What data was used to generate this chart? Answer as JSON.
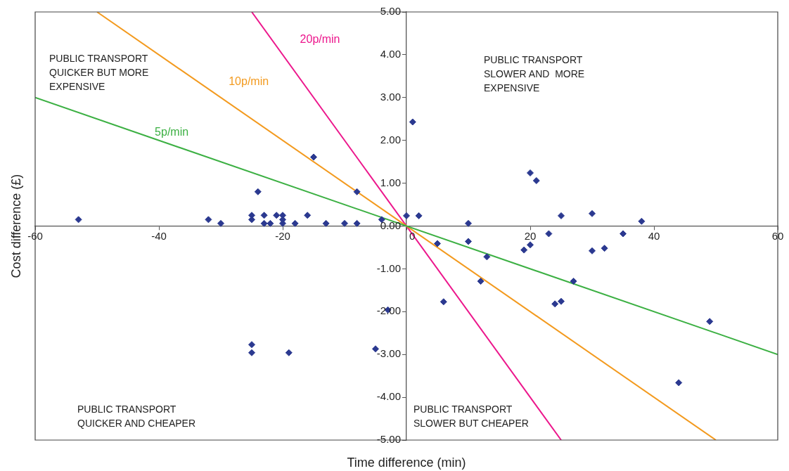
{
  "chart_data": {
    "type": "scatter",
    "xlabel": "Time difference (min)",
    "ylabel": "Cost difference (£)",
    "xlim": [
      -60,
      60
    ],
    "xticks": [
      -60,
      -40,
      -20,
      0,
      20,
      40,
      60
    ],
    "ylim": [
      -5,
      5
    ],
    "yticks": [
      {
        "value": -5,
        "label": "-5.00"
      },
      {
        "value": -4,
        "label": "-4.00"
      },
      {
        "value": -3,
        "label": "-3.00"
      },
      {
        "value": -2,
        "label": "-2.00"
      },
      {
        "value": -1,
        "label": "-1.00"
      },
      {
        "value": 0,
        "label": "0.00"
      },
      {
        "value": 1,
        "label": "1.00"
      },
      {
        "value": 2,
        "label": "2.00"
      },
      {
        "value": 3,
        "label": "3.00"
      },
      {
        "value": 4,
        "label": "4.00"
      },
      {
        "value": 5,
        "label": "5.00"
      }
    ],
    "legend": false,
    "marker": "diamond",
    "annotations": [
      "PUBLIC TRANSPORT\nQUICKER BUT MORE\nEXPENSIVE",
      "PUBLIC TRANSPORT\nSLOWER AND  MORE\nEXPENSIVE",
      "PUBLIC TRANSPORT\nQUICKER AND CHEAPER",
      "PUBLIC TRANSPORT\nSLOWER BUT CHEAPER"
    ],
    "series": [
      {
        "color": "#2b3990",
        "x": [
          -53,
          -32,
          -30,
          -25,
          -25,
          -24,
          -23,
          -23,
          -22,
          -21,
          -20,
          -20,
          -20,
          -18,
          -16,
          -15,
          -13,
          -10,
          -8,
          -8,
          -4,
          -25,
          -25,
          -19,
          -5,
          -3,
          0,
          1,
          2,
          5,
          6,
          10,
          10,
          13,
          12,
          19,
          20,
          20,
          21,
          23,
          24,
          25,
          25,
          27,
          30,
          30,
          32,
          35,
          38,
          44,
          49
        ],
        "values": [
          0.15,
          0.15,
          0.06,
          0.25,
          0.15,
          0.8,
          0.25,
          0.06,
          0.06,
          0.25,
          0.25,
          0.15,
          0.06,
          0.06,
          0.25,
          1.61,
          0.06,
          0.06,
          0.8,
          0.06,
          0.15,
          -2.77,
          -2.96,
          -2.96,
          -2.87,
          -1.96,
          0.24,
          2.43,
          0.24,
          -0.41,
          -1.77,
          0.06,
          -0.36,
          -0.72,
          -1.29,
          -0.56,
          -0.44,
          1.24,
          1.06,
          -0.18,
          -1.82,
          -1.76,
          0.24,
          -1.29,
          0.29,
          -0.58,
          -0.52,
          -0.18,
          0.11,
          -3.66,
          -2.23
        ]
      },
      {
        "type": "line",
        "marker": "none",
        "name": "5p/min",
        "color": "#3cb043",
        "x": [
          -60,
          60
        ],
        "values": [
          3,
          -3
        ]
      },
      {
        "type": "line",
        "marker": "none",
        "name": "10p/min",
        "color": "#f39a1e",
        "x": [
          -50,
          50
        ],
        "values": [
          5,
          -5
        ]
      },
      {
        "type": "line",
        "marker": "none",
        "name": "20p/min",
        "color": "#ec168c",
        "x": [
          -25,
          25
        ],
        "values": [
          5,
          -5
        ]
      }
    ]
  }
}
